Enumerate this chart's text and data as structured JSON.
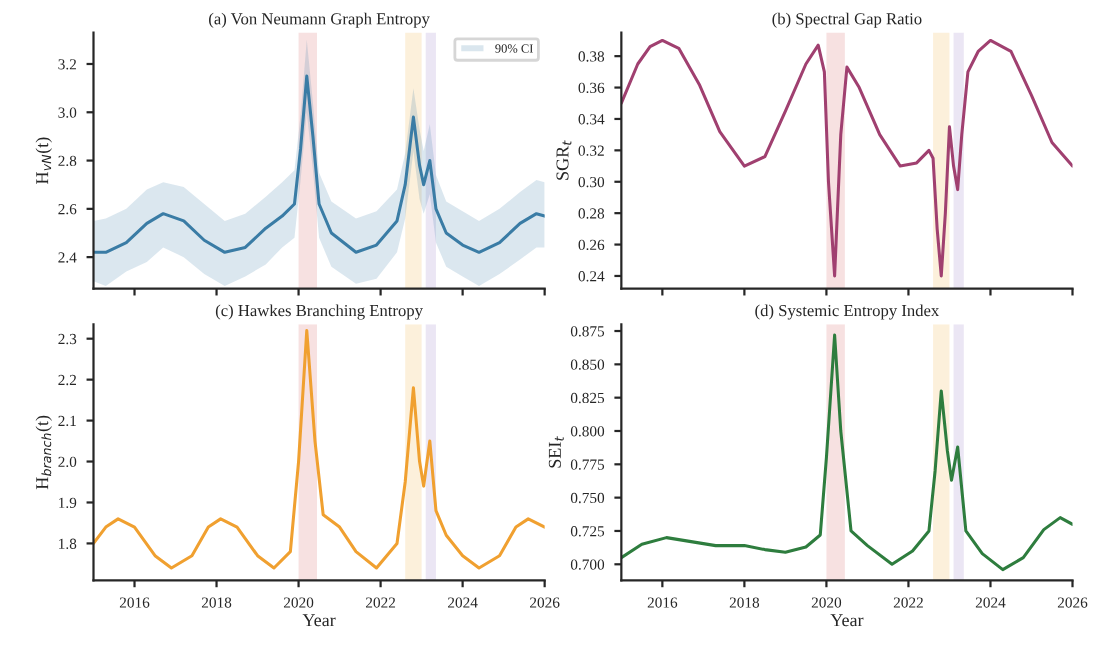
{
  "chart_data": [
    {
      "type": "line",
      "title": "(a) Von Neumann Graph Entropy",
      "ylabel": "H$_{vN}$(t)",
      "xlim": [
        2015,
        2026
      ],
      "xticks": [
        2016,
        2018,
        2020,
        2022,
        2024,
        2026
      ],
      "ylim": [
        2.27,
        3.33
      ],
      "yticks": [
        2.4,
        2.6,
        2.8,
        {
          "value": 3.0,
          "label": "3.0"
        },
        3.2
      ],
      "tick_labels": "y",
      "legend": "top right",
      "grid": false,
      "x": [
        2015,
        2015.3,
        2015.8,
        2016.3,
        2016.7,
        2017.2,
        2017.7,
        2018.2,
        2018.7,
        2019.2,
        2019.6,
        2019.9,
        2020.05,
        2020.2,
        2020.35,
        2020.5,
        2020.8,
        2021.4,
        2021.9,
        2022.4,
        2022.6,
        2022.8,
        2022.95,
        2023.05,
        2023.2,
        2023.35,
        2023.6,
        2024.0,
        2024.4,
        2024.9,
        2025.4,
        2025.8,
        2026
      ],
      "series": [
        {
          "name": "90% CI",
          "color": "#3a7ca5",
          "values": [
            2.42,
            2.42,
            2.46,
            2.54,
            2.58,
            2.55,
            2.47,
            2.42,
            2.44,
            2.52,
            2.57,
            2.62,
            2.85,
            3.15,
            2.9,
            2.62,
            2.5,
            2.42,
            2.45,
            2.55,
            2.7,
            2.98,
            2.78,
            2.7,
            2.8,
            2.6,
            2.5,
            2.45,
            2.42,
            2.46,
            2.54,
            2.58,
            2.57
          ],
          "lower": [
            2.3,
            2.28,
            2.34,
            2.38,
            2.44,
            2.4,
            2.33,
            2.28,
            2.32,
            2.37,
            2.44,
            2.48,
            2.72,
            3.0,
            2.76,
            2.48,
            2.36,
            2.29,
            2.31,
            2.42,
            2.56,
            2.84,
            2.64,
            2.58,
            2.66,
            2.46,
            2.36,
            2.32,
            2.28,
            2.33,
            2.39,
            2.44,
            2.44
          ],
          "upper": [
            2.55,
            2.56,
            2.6,
            2.68,
            2.71,
            2.69,
            2.62,
            2.55,
            2.58,
            2.65,
            2.71,
            2.76,
            2.99,
            3.3,
            3.04,
            2.75,
            2.63,
            2.56,
            2.59,
            2.68,
            2.83,
            3.1,
            2.93,
            2.84,
            2.95,
            2.74,
            2.63,
            2.59,
            2.55,
            2.6,
            2.67,
            2.72,
            2.71
          ]
        }
      ],
      "bands": [
        {
          "axis": "x",
          "from": 2020.0,
          "to": 2020.45,
          "color": "#f4d4d4"
        },
        {
          "axis": "x",
          "from": 2022.6,
          "to": 2023.0,
          "color": "#fbeacc"
        },
        {
          "axis": "x",
          "from": 2023.1,
          "to": 2023.35,
          "color": "#e2dcf0"
        }
      ]
    },
    {
      "type": "line",
      "title": "(b) Spectral Gap Ratio",
      "ylabel": "SGR$_{t}$",
      "xlim": [
        2015,
        2026
      ],
      "xticks": [
        2016,
        2018,
        2020,
        2022,
        2024,
        2026
      ],
      "ylim": [
        0.232,
        0.395
      ],
      "yticks": [
        0.24,
        0.26,
        0.28,
        {
          "value": 0.3,
          "label": "0.30"
        },
        0.32,
        0.34,
        0.36,
        0.38
      ],
      "tick_labels": "y",
      "grid": false,
      "x": [
        2015,
        2015.4,
        2015.7,
        2016.0,
        2016.4,
        2016.9,
        2017.4,
        2018.0,
        2018.5,
        2019.0,
        2019.5,
        2019.8,
        2019.95,
        2020.05,
        2020.2,
        2020.35,
        2020.5,
        2020.8,
        2021.3,
        2021.8,
        2022.2,
        2022.5,
        2022.6,
        2022.7,
        2022.8,
        2022.9,
        2023.0,
        2023.1,
        2023.2,
        2023.3,
        2023.45,
        2023.7,
        2024.0,
        2024.5,
        2025.0,
        2025.5,
        2026
      ],
      "series": [
        {
          "color": "#a04070",
          "values": [
            0.35,
            0.375,
            0.386,
            0.39,
            0.385,
            0.362,
            0.332,
            0.31,
            0.316,
            0.345,
            0.375,
            0.387,
            0.37,
            0.3,
            0.24,
            0.33,
            0.373,
            0.36,
            0.33,
            0.31,
            0.312,
            0.32,
            0.315,
            0.27,
            0.24,
            0.28,
            0.335,
            0.31,
            0.295,
            0.33,
            0.37,
            0.383,
            0.39,
            0.383,
            0.355,
            0.325,
            0.31
          ]
        }
      ],
      "bands": [
        {
          "axis": "x",
          "from": 2020.0,
          "to": 2020.45,
          "color": "#f4d4d4"
        },
        {
          "axis": "x",
          "from": 2022.6,
          "to": 2023.0,
          "color": "#fbeacc"
        },
        {
          "axis": "x",
          "from": 2023.1,
          "to": 2023.35,
          "color": "#e2dcf0"
        }
      ]
    },
    {
      "type": "line",
      "title": "(c) Hawkes Branching Entropy",
      "xlabel": "Year",
      "ylabel": "H$_{branch}$(t)",
      "xlim": [
        2015,
        2026
      ],
      "xticks": [
        2016,
        2018,
        2020,
        2022,
        2024,
        2026
      ],
      "ylim": [
        1.71,
        2.335
      ],
      "yticks": [
        1.8,
        1.9,
        {
          "value": 2.0,
          "label": "2.0"
        },
        2.1,
        2.2,
        2.3
      ],
      "grid": false,
      "x": [
        2015,
        2015.3,
        2015.6,
        2016.0,
        2016.5,
        2016.9,
        2017.4,
        2017.8,
        2018.1,
        2018.5,
        2019.0,
        2019.4,
        2019.8,
        2020.0,
        2020.2,
        2020.4,
        2020.6,
        2021.0,
        2021.4,
        2021.9,
        2022.4,
        2022.6,
        2022.8,
        2022.95,
        2023.05,
        2023.2,
        2023.35,
        2023.6,
        2024.0,
        2024.4,
        2024.9,
        2025.3,
        2025.6,
        2026
      ],
      "series": [
        {
          "color": "#f0a030",
          "values": [
            1.8,
            1.84,
            1.86,
            1.84,
            1.77,
            1.74,
            1.77,
            1.84,
            1.86,
            1.84,
            1.77,
            1.74,
            1.78,
            2.0,
            2.32,
            2.05,
            1.87,
            1.84,
            1.78,
            1.74,
            1.8,
            1.95,
            2.18,
            2.0,
            1.94,
            2.05,
            1.88,
            1.82,
            1.77,
            1.74,
            1.77,
            1.84,
            1.86,
            1.84
          ]
        }
      ],
      "bands": [
        {
          "axis": "x",
          "from": 2020.0,
          "to": 2020.45,
          "color": "#f4d4d4"
        },
        {
          "axis": "x",
          "from": 2022.6,
          "to": 2023.0,
          "color": "#fbeacc"
        },
        {
          "axis": "x",
          "from": 2023.1,
          "to": 2023.35,
          "color": "#e2dcf0"
        }
      ]
    },
    {
      "type": "line",
      "title": "(d) Systemic Entropy Index",
      "xlabel": "Year",
      "ylabel": "SEI$_{t}$",
      "xlim": [
        2015,
        2026
      ],
      "xticks": [
        2016,
        2018,
        2020,
        2022,
        2024,
        2026
      ],
      "ylim": [
        0.688,
        0.88
      ],
      "yticks": [
        {
          "value": 0.7,
          "label": "0.700"
        },
        {
          "value": 0.725,
          "label": "0.725"
        },
        {
          "value": 0.75,
          "label": "0.750"
        },
        {
          "value": 0.775,
          "label": "0.775"
        },
        {
          "value": 0.8,
          "label": "0.800"
        },
        {
          "value": 0.825,
          "label": "0.825"
        },
        {
          "value": 0.85,
          "label": "0.850"
        },
        {
          "value": 0.875,
          "label": "0.875"
        }
      ],
      "grid": false,
      "x": [
        2015,
        2015.5,
        2016.1,
        2016.7,
        2017.3,
        2018.0,
        2018.5,
        2019.0,
        2019.5,
        2019.85,
        2020.0,
        2020.2,
        2020.35,
        2020.6,
        2021.0,
        2021.6,
        2022.1,
        2022.5,
        2022.65,
        2022.8,
        2022.95,
        2023.05,
        2023.2,
        2023.4,
        2023.8,
        2024.3,
        2024.8,
        2025.3,
        2025.7,
        2026
      ],
      "series": [
        {
          "color": "#2e7d3e",
          "values": [
            0.705,
            0.715,
            0.72,
            0.717,
            0.714,
            0.714,
            0.711,
            0.709,
            0.713,
            0.722,
            0.78,
            0.872,
            0.8,
            0.725,
            0.714,
            0.7,
            0.71,
            0.725,
            0.77,
            0.83,
            0.785,
            0.763,
            0.788,
            0.725,
            0.708,
            0.696,
            0.705,
            0.726,
            0.735,
            0.73
          ]
        }
      ],
      "bands": [
        {
          "axis": "x",
          "from": 2020.0,
          "to": 2020.45,
          "color": "#f4d4d4"
        },
        {
          "axis": "x",
          "from": 2022.6,
          "to": 2023.0,
          "color": "#fbeacc"
        },
        {
          "axis": "x",
          "from": 2023.1,
          "to": 2023.35,
          "color": "#e2dcf0"
        }
      ]
    }
  ]
}
